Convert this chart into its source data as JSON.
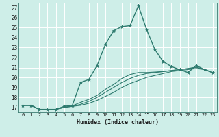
{
  "xlabel": "Humidex (Indice chaleur)",
  "background_color": "#ceeee8",
  "line_color": "#2d7a6e",
  "grid_color": "#ffffff",
  "xlim": [
    -0.5,
    23.5
  ],
  "ylim": [
    16.5,
    27.5
  ],
  "yticks": [
    17,
    18,
    19,
    20,
    21,
    22,
    23,
    24,
    25,
    26,
    27
  ],
  "xticks": [
    0,
    1,
    2,
    3,
    4,
    5,
    6,
    7,
    8,
    9,
    10,
    11,
    12,
    13,
    14,
    15,
    16,
    17,
    18,
    19,
    20,
    21,
    22,
    23
  ],
  "main_line": [
    17.2,
    17.2,
    16.8,
    16.8,
    16.8,
    17.1,
    17.2,
    19.5,
    19.8,
    21.2,
    23.3,
    24.7,
    25.1,
    25.2,
    27.2,
    24.8,
    22.8,
    21.6,
    21.1,
    20.8,
    20.5,
    21.2,
    20.8,
    20.5
  ],
  "line2": [
    17.2,
    17.2,
    16.8,
    16.8,
    16.8,
    17.0,
    17.1,
    17.2,
    17.4,
    17.7,
    18.1,
    18.5,
    19.0,
    19.4,
    19.7,
    20.0,
    20.2,
    20.4,
    20.6,
    20.7,
    20.8,
    20.9,
    20.8,
    20.5
  ],
  "line3": [
    17.2,
    17.2,
    16.8,
    16.8,
    16.8,
    17.0,
    17.1,
    17.3,
    17.6,
    18.0,
    18.5,
    19.0,
    19.5,
    19.9,
    20.2,
    20.4,
    20.5,
    20.6,
    20.7,
    20.8,
    20.9,
    21.0,
    20.8,
    20.5
  ],
  "line4": [
    17.2,
    17.2,
    16.8,
    16.8,
    16.8,
    17.0,
    17.15,
    17.5,
    17.8,
    18.2,
    18.8,
    19.3,
    19.9,
    20.3,
    20.5,
    20.5,
    20.55,
    20.6,
    20.7,
    20.8,
    20.9,
    21.05,
    20.8,
    20.5
  ]
}
